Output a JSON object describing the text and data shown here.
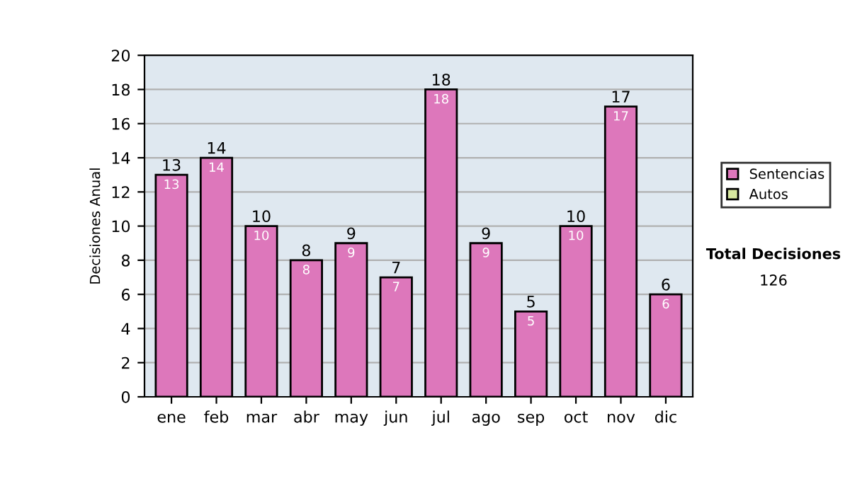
{
  "chart_data": {
    "type": "bar",
    "ylabel": "Decisiones Anual",
    "categories": [
      "ene",
      "feb",
      "mar",
      "abr",
      "may",
      "jun",
      "jul",
      "ago",
      "sep",
      "oct",
      "nov",
      "dic"
    ],
    "stacked": true,
    "series": [
      {
        "name": "Sentencias",
        "color": "#dd77bb",
        "values": [
          13,
          14,
          10,
          8,
          9,
          7,
          18,
          9,
          5,
          10,
          17,
          6
        ],
        "value_labels": [
          "13",
          "14",
          "10",
          "8",
          "9",
          "7",
          "18",
          "9",
          "5",
          "10",
          "17",
          "6"
        ]
      },
      {
        "name": "Autos",
        "color": "#d8e8a0",
        "values": [
          null,
          null,
          null,
          null,
          null,
          null,
          null,
          null,
          null,
          null,
          null,
          null
        ]
      }
    ],
    "totals": [
      "13",
      "14",
      "10",
      "8",
      "9",
      "7",
      "18",
      "9",
      "5",
      "10",
      "17",
      "6"
    ],
    "ylim": [
      0,
      20
    ],
    "yticks": [
      0,
      2,
      4,
      6,
      8,
      10,
      12,
      14,
      16,
      18,
      20
    ],
    "grid": "y",
    "legend": "right",
    "annotations": [
      "Total Decisiones",
      "126"
    ]
  }
}
